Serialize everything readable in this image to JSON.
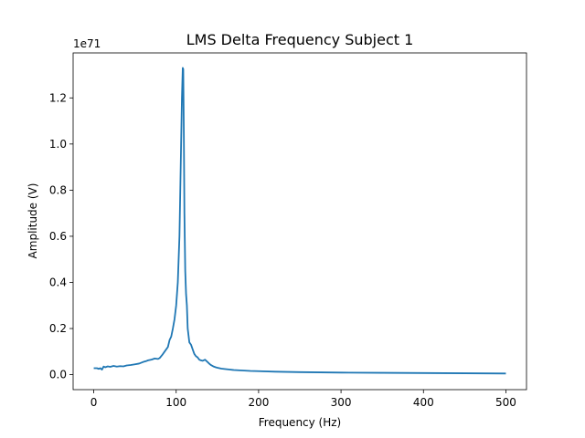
{
  "chart_data": {
    "type": "line",
    "title": "LMS Delta Frequency Subject 1",
    "xlabel": "Frequency (Hz)",
    "ylabel": "Amplitude (V)",
    "y_multiplier": "1e71",
    "xlim": [
      -25,
      525
    ],
    "ylim": [
      -0.065,
      1.395
    ],
    "xticks": [
      0,
      100,
      200,
      300,
      400,
      500
    ],
    "xtick_labels": [
      "0",
      "100",
      "200",
      "300",
      "400",
      "500"
    ],
    "yticks": [
      0.0,
      0.2,
      0.4,
      0.6,
      0.8,
      1.0,
      1.2
    ],
    "ytick_labels": [
      "0.0",
      "0.2",
      "0.4",
      "0.6",
      "0.8",
      "1.0",
      "1.2"
    ],
    "grid": false,
    "legend": "none",
    "series": [
      {
        "color": "#1f77b4",
        "x": [
          0,
          4,
          6,
          8,
          10,
          12,
          14,
          17,
          20,
          24,
          28,
          32,
          36,
          40,
          45,
          50,
          55,
          60,
          63,
          66,
          70,
          74,
          78,
          80,
          83,
          86,
          90,
          92,
          94,
          96,
          98,
          100,
          102,
          104,
          105,
          106,
          107,
          108,
          108.6,
          109.3,
          110,
          111,
          112,
          113,
          114,
          116,
          118,
          120,
          122,
          124,
          126,
          128,
          130,
          132,
          135,
          138,
          140,
          142,
          145,
          148,
          150,
          155,
          160,
          165,
          170,
          180,
          190,
          200,
          220,
          250,
          300,
          350,
          400,
          450,
          500
        ],
        "y": [
          0.028,
          0.028,
          0.025,
          0.028,
          0.022,
          0.035,
          0.032,
          0.036,
          0.034,
          0.038,
          0.035,
          0.037,
          0.036,
          0.04,
          0.042,
          0.045,
          0.048,
          0.055,
          0.058,
          0.062,
          0.065,
          0.07,
          0.068,
          0.072,
          0.085,
          0.1,
          0.12,
          0.15,
          0.165,
          0.2,
          0.24,
          0.3,
          0.4,
          0.6,
          0.8,
          1.0,
          1.2,
          1.33,
          1.325,
          1.05,
          0.7,
          0.45,
          0.35,
          0.3,
          0.2,
          0.14,
          0.13,
          0.11,
          0.09,
          0.08,
          0.075,
          0.065,
          0.062,
          0.06,
          0.065,
          0.055,
          0.048,
          0.042,
          0.036,
          0.032,
          0.03,
          0.026,
          0.024,
          0.022,
          0.02,
          0.018,
          0.016,
          0.015,
          0.013,
          0.011,
          0.009,
          0.008,
          0.007,
          0.006,
          0.005
        ]
      }
    ]
  }
}
